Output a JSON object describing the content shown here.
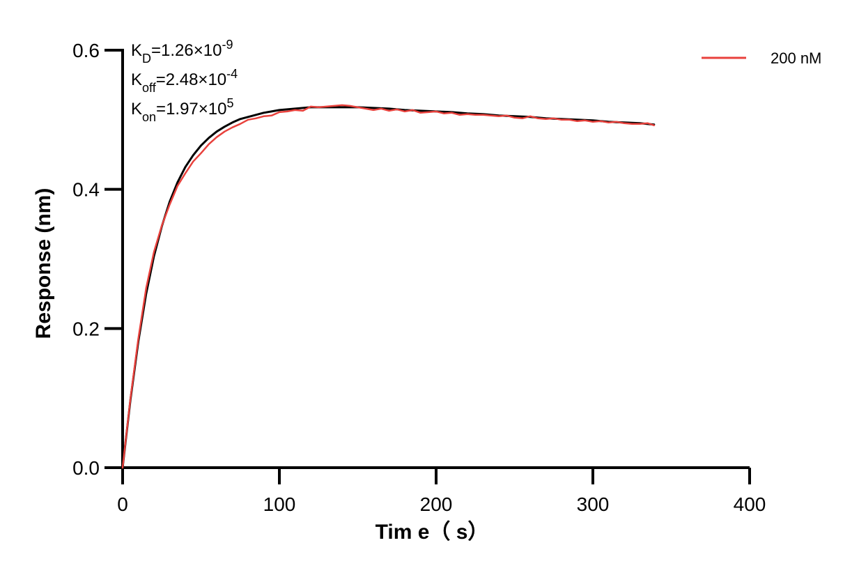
{
  "chart_data": {
    "type": "line",
    "xlabel": "Tim e（ s）",
    "ylabel": "Response (nm)",
    "xlim": [
      0,
      400
    ],
    "ylim": [
      0,
      0.6
    ],
    "xticks": [
      0,
      100,
      200,
      300,
      400
    ],
    "yticks": [
      0.0,
      0.2,
      0.4,
      0.6
    ],
    "xtick_labels": [
      "0",
      "100",
      "200",
      "300",
      "400"
    ],
    "ytick_labels": [
      "0.0",
      "0.2",
      "0.4",
      "0.6"
    ],
    "grid": false,
    "legend_position": "top-right",
    "annotations": [
      {
        "main": "K",
        "sub": "D",
        "eq": "=1.26×10",
        "sup": "-9"
      },
      {
        "main": "K",
        "sub": "off",
        "eq": "=2.48×10",
        "sup": "-4"
      },
      {
        "main": "K",
        "sub": "on",
        "eq": "=1.97×10",
        "sup": "5"
      }
    ],
    "series": [
      {
        "name": "200 nM",
        "color": "#e8413c",
        "style": "measured",
        "x": [
          0,
          5,
          10,
          15,
          20,
          25,
          30,
          35,
          40,
          45,
          50,
          55,
          60,
          65,
          70,
          75,
          80,
          85,
          90,
          95,
          100,
          105,
          110,
          115,
          120,
          125,
          130,
          135,
          140,
          145,
          150,
          155,
          160,
          165,
          170,
          175,
          180,
          185,
          190,
          195,
          200,
          205,
          210,
          215,
          220,
          225,
          230,
          235,
          240,
          245,
          250,
          255,
          260,
          265,
          270,
          275,
          280,
          285,
          290,
          295,
          300,
          305,
          310,
          315,
          320,
          325,
          330,
          335,
          339
        ],
        "y": [
          0.0,
          0.1,
          0.185,
          0.258,
          0.31,
          0.348,
          0.378,
          0.405,
          0.423,
          0.44,
          0.452,
          0.465,
          0.475,
          0.483,
          0.489,
          0.494,
          0.5,
          0.502,
          0.505,
          0.506,
          0.511,
          0.512,
          0.514,
          0.513,
          0.519,
          0.518,
          0.519,
          0.52,
          0.521,
          0.52,
          0.518,
          0.516,
          0.514,
          0.516,
          0.513,
          0.515,
          0.512,
          0.514,
          0.51,
          0.511,
          0.512,
          0.509,
          0.51,
          0.507,
          0.508,
          0.507,
          0.507,
          0.506,
          0.505,
          0.506,
          0.503,
          0.502,
          0.505,
          0.502,
          0.501,
          0.502,
          0.5,
          0.5,
          0.498,
          0.499,
          0.497,
          0.498,
          0.496,
          0.497,
          0.495,
          0.494,
          0.494,
          0.495,
          0.492
        ]
      },
      {
        "name": "",
        "color": "#000000",
        "style": "fit",
        "x": [
          0,
          5,
          10,
          15,
          20,
          25,
          30,
          35,
          40,
          45,
          50,
          55,
          60,
          65,
          70,
          75,
          80,
          85,
          90,
          95,
          100,
          110,
          120,
          130,
          140,
          150,
          160,
          170,
          180,
          190,
          200,
          210,
          220,
          230,
          240,
          250,
          260,
          270,
          280,
          290,
          300,
          310,
          320,
          330,
          339
        ],
        "y": [
          0.0,
          0.098,
          0.181,
          0.25,
          0.304,
          0.347,
          0.382,
          0.41,
          0.432,
          0.449,
          0.463,
          0.474,
          0.483,
          0.49,
          0.496,
          0.501,
          0.504,
          0.507,
          0.51,
          0.512,
          0.514,
          0.516,
          0.518,
          0.518,
          0.518,
          0.518,
          0.517,
          0.516,
          0.514,
          0.513,
          0.512,
          0.511,
          0.509,
          0.508,
          0.506,
          0.505,
          0.504,
          0.502,
          0.501,
          0.5,
          0.499,
          0.497,
          0.496,
          0.495,
          0.493
        ]
      }
    ]
  }
}
